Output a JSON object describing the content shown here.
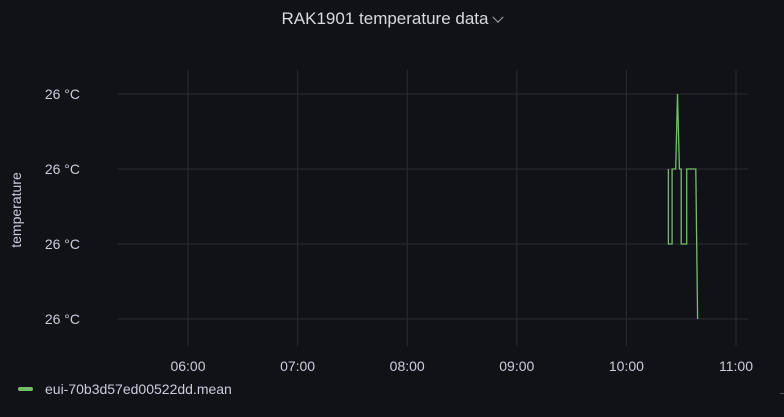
{
  "panel": {
    "title": "RAK1901 temperature data"
  },
  "chart_data": {
    "type": "line",
    "ylabel": "temperature",
    "y_ticks": [
      "26 °C",
      "26 °C",
      "26 °C",
      "26 °C"
    ],
    "x_ticks": [
      "06:00",
      "07:00",
      "08:00",
      "09:00",
      "10:00",
      "11:00"
    ],
    "xlim": [
      "05:20",
      "11:10"
    ],
    "ylim_relative": [
      0,
      4
    ],
    "grid": true,
    "legend_position": "bottom-left",
    "series": [
      {
        "name": "eui-70b3d57ed00522dd.mean",
        "color": "#73bf69",
        "points": [
          {
            "x": "10:23",
            "y": 2.0
          },
          {
            "x": "10:23",
            "y": 1.0
          },
          {
            "x": "10:25",
            "y": 1.0
          },
          {
            "x": "10:25",
            "y": 2.0
          },
          {
            "x": "10:27",
            "y": 2.0
          },
          {
            "x": "10:28",
            "y": 3.0
          },
          {
            "x": "10:29",
            "y": 2.0
          },
          {
            "x": "10:30",
            "y": 2.0
          },
          {
            "x": "10:30",
            "y": 1.0
          },
          {
            "x": "10:33",
            "y": 1.0
          },
          {
            "x": "10:33",
            "y": 2.0
          },
          {
            "x": "10:38",
            "y": 2.0
          },
          {
            "x": "10:39",
            "y": 0.0
          }
        ]
      }
    ]
  }
}
